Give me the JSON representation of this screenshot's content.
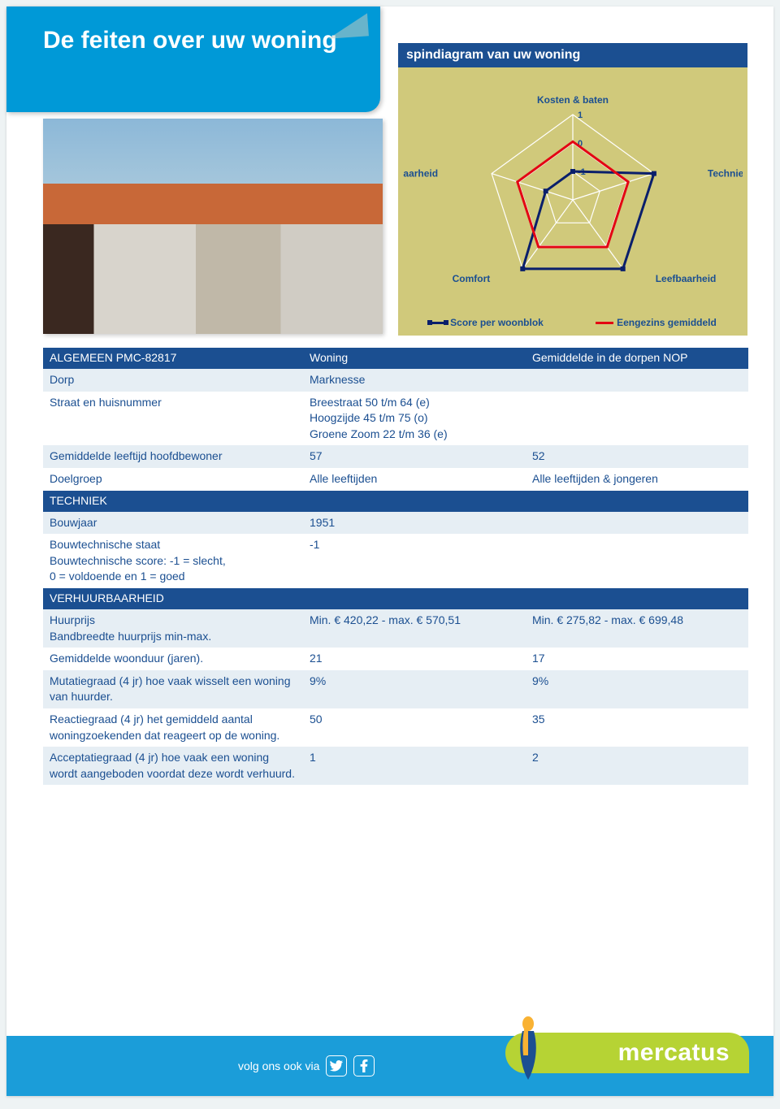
{
  "header": {
    "title": "De feiten over uw woning"
  },
  "chart": {
    "type": "radar",
    "title": "spindiagram van uw woning",
    "axes": [
      "Kosten & baten",
      "Techniek",
      "Leefbaarheid",
      "Comfort",
      "Verhuurbaarheid"
    ],
    "scale_labels": [
      "1",
      "0",
      "-1"
    ],
    "scale_min": -1,
    "scale_max": 1,
    "background_color": "#d0c97b",
    "title_bar_color": "#1b4f91",
    "axis_line_color": "#ffffff",
    "axis_label_color": "#1b4f91",
    "axis_label_fontsize": 12,
    "axis_label_fontweight": 700,
    "series": [
      {
        "name": "Score per woonblok",
        "color": "#0a1f6b",
        "stroke_width": 3,
        "marker": "square",
        "marker_size": 6,
        "fill_opacity": 0,
        "values": {
          "Kosten & baten": -1,
          "Techniek": 1,
          "Leefbaarheid": 1,
          "Comfort": 1,
          "Verhuurbaarheid": -1
        }
      },
      {
        "name": "Eengezins gemiddeld",
        "color": "#e30613",
        "stroke_width": 3,
        "marker": "none",
        "fill_opacity": 0,
        "values": {
          "Kosten & baten": 0.05,
          "Techniek": 0.05,
          "Leefbaarheid": 0.05,
          "Comfort": 0.05,
          "Verhuurbaarheid": 0.05
        }
      }
    ],
    "legend_position": "bottom"
  },
  "table": {
    "header_bg": "#1b4f91",
    "header_color": "#ffffff",
    "row_even_bg": "#e6eef4",
    "row_odd_bg": "#ffffff",
    "text_color": "#1b4f91",
    "fontsize": 14,
    "columns": [
      "",
      "Woning",
      "Gemiddelde in de dorpen NOP"
    ],
    "sections": [
      {
        "title_col1": "ALGEMEEN PMC-82817",
        "title_col2": "Woning",
        "title_col3": "Gemiddelde in de dorpen NOP",
        "rows": [
          {
            "label": "Dorp",
            "c2": "Marknesse",
            "c3": ""
          },
          {
            "label": "Straat en huisnummer",
            "c2": "Breestraat 50 t/m 64 (e)\nHoogzijde 45 t/m 75 (o)\nGroene Zoom 22 t/m 36 (e)",
            "c3": ""
          },
          {
            "label": "Gemiddelde leeftijd hoofdbewoner",
            "c2": "57",
            "c3": "52"
          },
          {
            "label": "Doelgroep",
            "c2": "Alle leeftijden",
            "c3": "Alle leeftijden & jongeren"
          }
        ]
      },
      {
        "title_col1": "TECHNIEK",
        "title_col2": "",
        "title_col3": "",
        "rows": [
          {
            "label": "Bouwjaar",
            "c2": "1951",
            "c3": ""
          },
          {
            "label": "Bouwtechnische staat\nBouwtechnische score: -1 = slecht,\n0 = voldoende en 1 = goed",
            "c2": "-1",
            "c3": ""
          }
        ]
      },
      {
        "title_col1": "VERHUURBAARHEID",
        "title_col2": "",
        "title_col3": "",
        "rows": [
          {
            "label": "Huurprijs\nBandbreedte huurprijs min-max.",
            "c2": "Min. € 420,22 - max. € 570,51",
            "c3": "Min. € 275,82 - max. € 699,48"
          },
          {
            "label": "Gemiddelde woonduur (jaren).",
            "c2": "21",
            "c3": "17"
          },
          {
            "label": "Mutatiegraad (4 jr) hoe vaak wisselt een woning van huurder.",
            "c2": "9%",
            "c3": "9%"
          },
          {
            "label": "Reactiegraad (4 jr) het gemiddeld aantal woningzoekenden dat reageert op de woning.",
            "c2": "50",
            "c3": "35"
          },
          {
            "label": "Acceptatiegraad (4 jr) hoe vaak een woning wordt aangeboden voordat deze wordt verhuurd.",
            "c2": "1",
            "c3": "2"
          }
        ]
      }
    ]
  },
  "footer": {
    "follow_text": "volg ons ook via",
    "logo_text": "mercatus",
    "bar_color": "#1b9dd9",
    "logo_pill_color": "#b6d334"
  }
}
